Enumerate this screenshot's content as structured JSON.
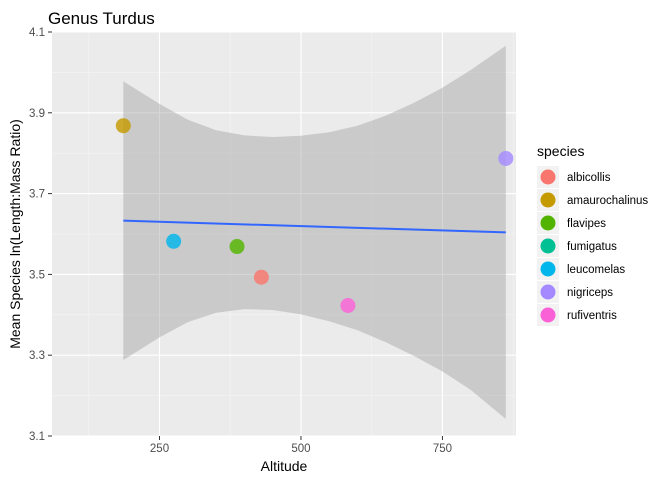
{
  "chart_data": {
    "type": "scatter",
    "title": "Genus Turdus",
    "xlabel": "Altitude",
    "ylabel": "Mean Species ln(Length:Mass Ratio)",
    "xlim": [
      60,
      880
    ],
    "ylim": [
      3.1,
      4.1
    ],
    "x_ticks": [
      250,
      500,
      750
    ],
    "y_ticks": [
      3.1,
      3.3,
      3.5,
      3.7,
      3.9,
      4.1
    ],
    "x_tick_labels": [
      "250",
      "500",
      "750"
    ],
    "y_tick_labels": [
      "3.1",
      "3.3",
      "3.5",
      "3.7",
      "3.9",
      "4.1"
    ],
    "grid": true,
    "legend_title": "species",
    "legend_position": "right",
    "series": [
      {
        "name": "albicollis",
        "color": "#F8766D",
        "x": 430,
        "y": 3.493
      },
      {
        "name": "amaurochalinus",
        "color": "#C49A00",
        "x": 186,
        "y": 3.868
      },
      {
        "name": "flavipes",
        "color": "#53B400",
        "x": 387,
        "y": 3.569
      },
      {
        "name": "fumigatus",
        "color": "#00C094",
        "x": null,
        "y": null
      },
      {
        "name": "leucomelas",
        "color": "#00B6EB",
        "x": 275,
        "y": 3.582
      },
      {
        "name": "nigriceps",
        "color": "#A58AFF",
        "x": 862,
        "y": 3.787
      },
      {
        "name": "rufiventris",
        "color": "#FB61D7",
        "x": 583,
        "y": 3.423
      }
    ],
    "regression": {
      "type": "linear",
      "color": "#3366FF",
      "x": [
        186,
        862
      ],
      "y": [
        3.633,
        3.604
      ],
      "ci_upper": [
        [
          186,
          3.978
        ],
        [
          250,
          3.922
        ],
        [
          300,
          3.883
        ],
        [
          350,
          3.857
        ],
        [
          400,
          3.844
        ],
        [
          450,
          3.84
        ],
        [
          500,
          3.843
        ],
        [
          550,
          3.852
        ],
        [
          600,
          3.868
        ],
        [
          650,
          3.893
        ],
        [
          700,
          3.925
        ],
        [
          750,
          3.962
        ],
        [
          800,
          4.006
        ],
        [
          862,
          4.066
        ]
      ],
      "ci_lower": [
        [
          186,
          3.288
        ],
        [
          250,
          3.344
        ],
        [
          300,
          3.382
        ],
        [
          350,
          3.405
        ],
        [
          400,
          3.414
        ],
        [
          450,
          3.412
        ],
        [
          500,
          3.401
        ],
        [
          550,
          3.384
        ],
        [
          600,
          3.362
        ],
        [
          650,
          3.332
        ],
        [
          700,
          3.298
        ],
        [
          750,
          3.26
        ],
        [
          800,
          3.214
        ],
        [
          862,
          3.142
        ]
      ],
      "ci_color": "#999999"
    },
    "colors": {
      "panel_background": "#EBEBEB",
      "grid_major": "#FFFFFF",
      "grid_minor": "#F5F5F5"
    }
  }
}
